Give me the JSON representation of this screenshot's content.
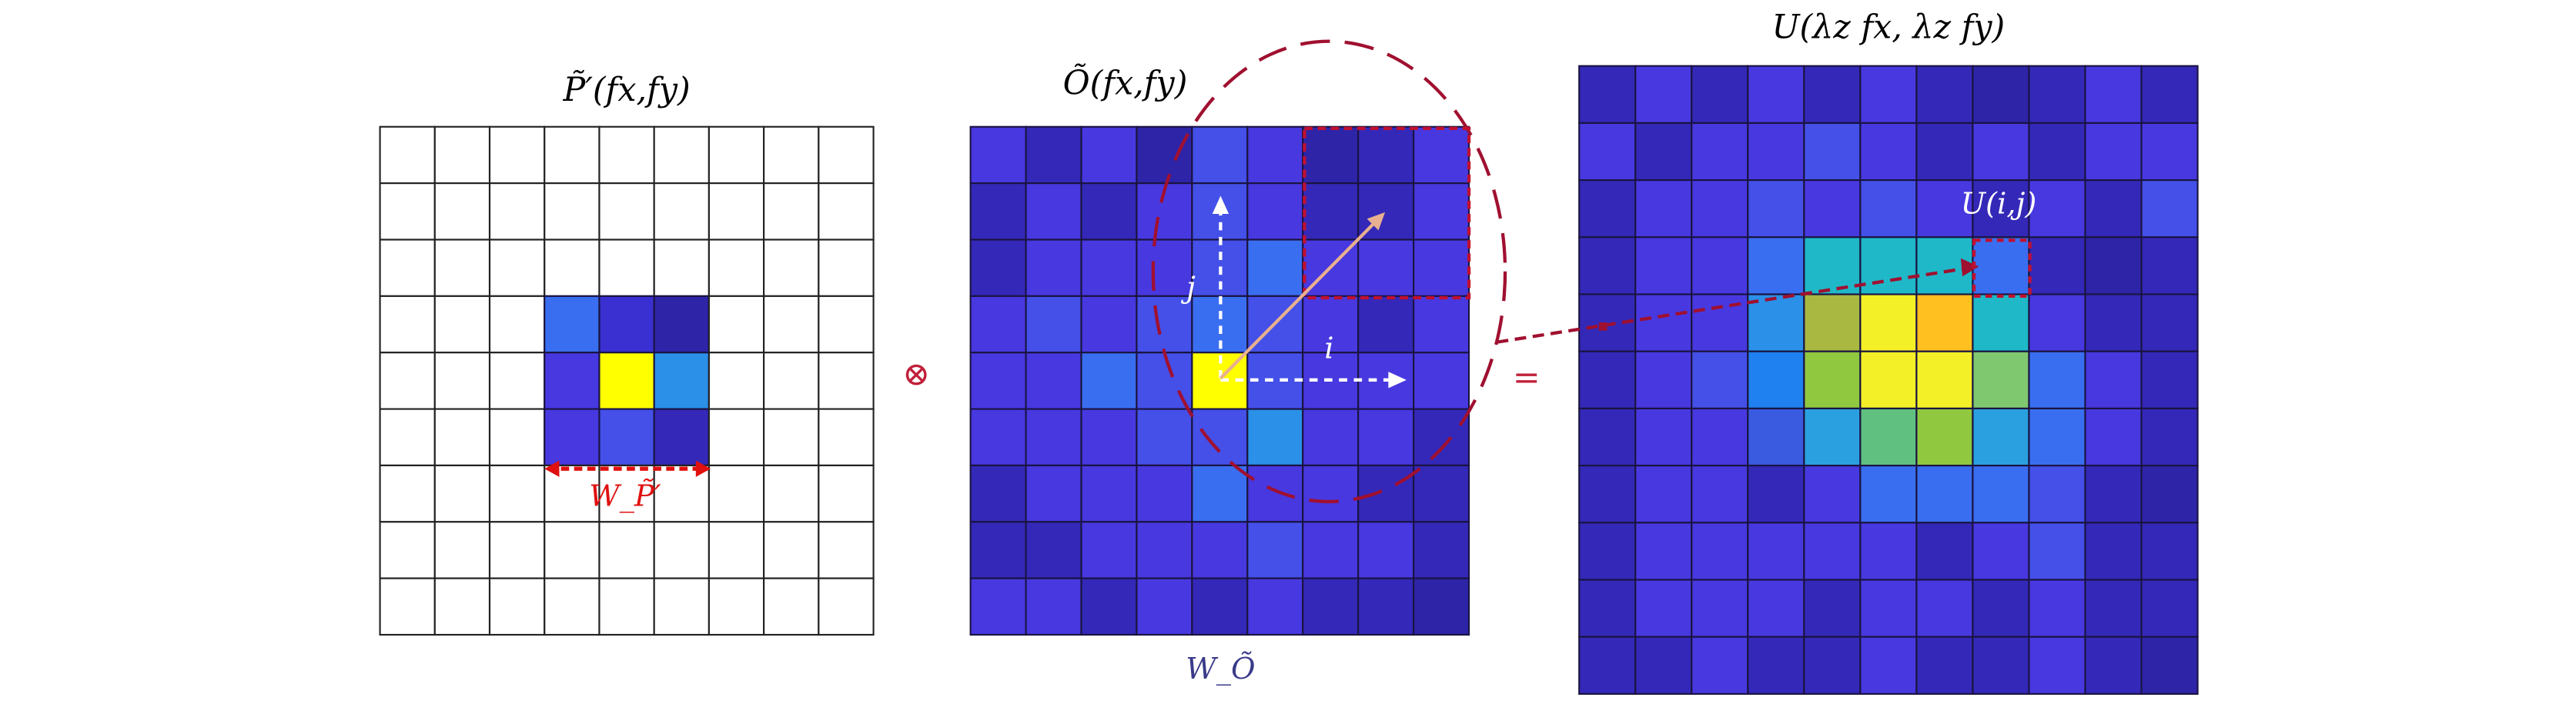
{
  "left_panel": {
    "title": "P̃′(fx,fy)",
    "width_label": "W_P̃′"
  },
  "operator": "⊗",
  "middle_panel": {
    "title": "Õ(fx,fy)",
    "axis_j": "j",
    "axis_i": "i",
    "width_label": "W_Õ"
  },
  "equals": "=",
  "right_panel": {
    "title": "U(λz fx, λz fy)",
    "cell_label": "U(i,j)"
  }
}
